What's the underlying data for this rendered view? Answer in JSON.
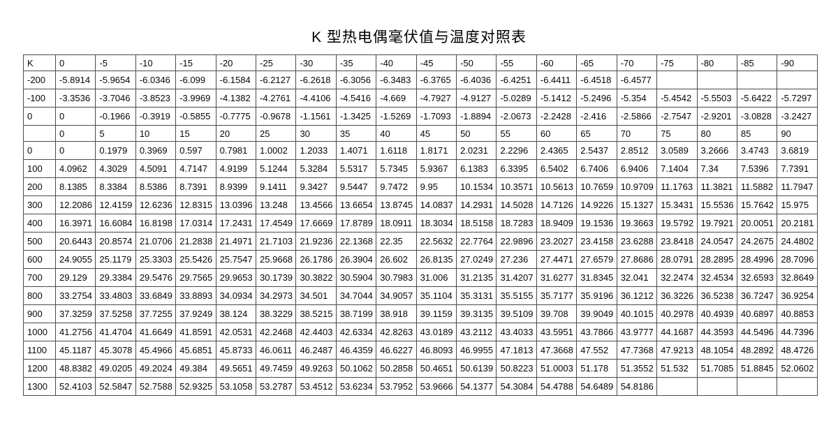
{
  "page": {
    "title": "K 型热电偶毫伏值与温度对照表"
  },
  "table": {
    "corner_label": "K",
    "negative_offsets": [
      "0",
      "-5",
      "-10",
      "-15",
      "-20",
      "-25",
      "-30",
      "-35",
      "-40",
      "-45",
      "-50",
      "-55",
      "-60",
      "-65",
      "-70",
      "-75",
      "-80",
      "-85",
      "-90"
    ],
    "negative_rows": [
      {
        "label": "-200",
        "values": [
          "-5.8914",
          "-5.9654",
          "-6.0346",
          "-6.099",
          "-6.1584",
          "-6.2127",
          "-6.2618",
          "-6.3056",
          "-6.3483",
          "-6.3765",
          "-6.4036",
          "-6.4251",
          "-6.4411",
          "-6.4518",
          "-6.4577",
          "",
          "",
          "",
          ""
        ]
      },
      {
        "label": "-100",
        "values": [
          "-3.3536",
          "-3.7046",
          "-3.8523",
          "-3.9969",
          "-4.1382",
          "-4.2761",
          "-4.4106",
          "-4.5416",
          "-4.669",
          "-4.7927",
          "-4.9127",
          "-5.0289",
          "-5.1412",
          "-5.2496",
          "-5.354",
          "-5.4542",
          "-5.5503",
          "-5.6422",
          "-5.7297"
        ]
      },
      {
        "label": "0",
        "values": [
          "0",
          "-0.1966",
          "-0.3919",
          "-0.5855",
          "-0.7775",
          "-0.9678",
          "-1.1561",
          "-1.3425",
          "-1.5269",
          "-1.7093",
          "-1.8894",
          "-2.0673",
          "-2.2428",
          "-2.416",
          "-2.5866",
          "-2.7547",
          "-2.9201",
          "-3.0828",
          "-3.2427"
        ]
      }
    ],
    "positive_offsets": [
      "0",
      "5",
      "10",
      "15",
      "20",
      "25",
      "30",
      "35",
      "40",
      "45",
      "50",
      "55",
      "60",
      "65",
      "70",
      "75",
      "80",
      "85",
      "90"
    ],
    "positive_rows": [
      {
        "label": "0",
        "values": [
          "0",
          "0.1979",
          "0.3969",
          "0.597",
          "0.7981",
          "1.0002",
          "1.2033",
          "1.4071",
          "1.6118",
          "1.8171",
          "2.0231",
          "2.2296",
          "2.4365",
          "2.5437",
          "2.8512",
          "3.0589",
          "3.2666",
          "3.4743",
          "3.6819"
        ]
      },
      {
        "label": "100",
        "values": [
          "4.0962",
          "4.3029",
          "4.5091",
          "4.7147",
          "4.9199",
          "5.1244",
          "5.3284",
          "5.5317",
          "5.7345",
          "5.9367",
          "6.1383",
          "6.3395",
          "6.5402",
          "6.7406",
          "6.9406",
          "7.1404",
          "7.34",
          "7.5396",
          "7.7391"
        ]
      },
      {
        "label": "200",
        "values": [
          "8.1385",
          "8.3384",
          "8.5386",
          "8.7391",
          "8.9399",
          "9.1411",
          "9.3427",
          "9.5447",
          "9.7472",
          "9.95",
          "10.1534",
          "10.3571",
          "10.5613",
          "10.7659",
          "10.9709",
          "11.1763",
          "11.3821",
          "11.5882",
          "11.7947"
        ]
      },
      {
        "label": "300",
        "values": [
          "12.2086",
          "12.4159",
          "12.6236",
          "12.8315",
          "13.0396",
          "13.248",
          "13.4566",
          "13.6654",
          "13.8745",
          "14.0837",
          "14.2931",
          "14.5028",
          "14.7126",
          "14.9226",
          "15.1327",
          "15.3431",
          "15.5536",
          "15.7642",
          "15.975"
        ]
      },
      {
        "label": "400",
        "values": [
          "16.3971",
          "16.6084",
          "16.8198",
          "17.0314",
          "17.2431",
          "17.4549",
          "17.6669",
          "17.8789",
          "18.0911",
          "18.3034",
          "18.5158",
          "18.7283",
          "18.9409",
          "19.1536",
          "19.3663",
          "19.5792",
          "19.7921",
          "20.0051",
          "20.2181"
        ]
      },
      {
        "label": "500",
        "values": [
          "20.6443",
          "20.8574",
          "21.0706",
          "21.2838",
          "21.4971",
          "21.7103",
          "21.9236",
          "22.1368",
          "22.35",
          "22.5632",
          "22.7764",
          "22.9896",
          "23.2027",
          "23.4158",
          "23.6288",
          "23.8418",
          "24.0547",
          "24.2675",
          "24.4802"
        ]
      },
      {
        "label": "600",
        "values": [
          "24.9055",
          "25.1179",
          "25.3303",
          "25.5426",
          "25.7547",
          "25.9668",
          "26.1786",
          "26.3904",
          "26.602",
          "26.8135",
          "27.0249",
          "27.236",
          "27.4471",
          "27.6579",
          "27.8686",
          "28.0791",
          "28.2895",
          "28.4996",
          "28.7096"
        ]
      },
      {
        "label": "700",
        "values": [
          "29.129",
          "29.3384",
          "29.5476",
          "29.7565",
          "29.9653",
          "30.1739",
          "30.3822",
          "30.5904",
          "30.7983",
          "31.006",
          "31.2135",
          "31.4207",
          "31.6277",
          "31.8345",
          "32.041",
          "32.2474",
          "32.4534",
          "32.6593",
          "32.8649"
        ]
      },
      {
        "label": "800",
        "values": [
          "33.2754",
          "33.4803",
          "33.6849",
          "33.8893",
          "34.0934",
          "34.2973",
          "34.501",
          "34.7044",
          "34.9057",
          "35.1104",
          "35.3131",
          "35.5155",
          "35.7177",
          "35.9196",
          "36.1212",
          "36.3226",
          "36.5238",
          "36.7247",
          "36.9254"
        ]
      },
      {
        "label": "900",
        "values": [
          "37.3259",
          "37.5258",
          "37.7255",
          "37.9249",
          "38.124",
          "38.3229",
          "38.5215",
          "38.7199",
          "38.918",
          "39.1159",
          "39.3135",
          "39.5109",
          "39.708",
          "39.9049",
          "40.1015",
          "40.2978",
          "40.4939",
          "40.6897",
          "40.8853"
        ]
      },
      {
        "label": "1000",
        "values": [
          "41.2756",
          "41.4704",
          "41.6649",
          "41.8591",
          "42.0531",
          "42.2468",
          "42.4403",
          "42.6334",
          "42.8263",
          "43.0189",
          "43.2112",
          "43.4033",
          "43.5951",
          "43.7866",
          "43.9777",
          "44.1687",
          "44.3593",
          "44.5496",
          "44.7396"
        ]
      },
      {
        "label": "1100",
        "values": [
          "45.1187",
          "45.3078",
          "45.4966",
          "45.6851",
          "45.8733",
          "46.0611",
          "46.2487",
          "46.4359",
          "46.6227",
          "46.8093",
          "46.9955",
          "47.1813",
          "47.3668",
          "47.552",
          "47.7368",
          "47.9213",
          "48.1054",
          "48.2892",
          "48.4726"
        ]
      },
      {
        "label": "1200",
        "values": [
          "48.8382",
          "49.0205",
          "49.2024",
          "49.384",
          "49.5651",
          "49.7459",
          "49.9263",
          "50.1062",
          "50.2858",
          "50.4651",
          "50.6139",
          "50.8223",
          "51.0003",
          "51.178",
          "51.3552",
          "51.532",
          "51.7085",
          "51.8845",
          "52.0602"
        ]
      },
      {
        "label": "1300",
        "values": [
          "52.4103",
          "52.5847",
          "52.7588",
          "52.9325",
          "53.1058",
          "53.2787",
          "53.4512",
          "53.6234",
          "53.7952",
          "53.9666",
          "54.1377",
          "54.3084",
          "54.4788",
          "54.6489",
          "54.8186",
          "",
          "",
          "",
          ""
        ]
      }
    ]
  }
}
